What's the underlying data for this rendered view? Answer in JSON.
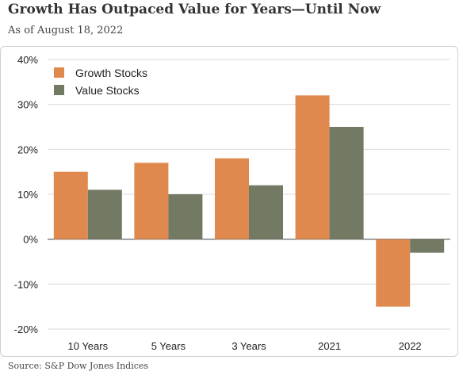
{
  "header": {
    "title": "Growth Has Outpaced Value for Years—Until Now",
    "subtitle": "As of August 18, 2022"
  },
  "footer": {
    "source": "Source: S&P Dow Jones Indices"
  },
  "chart_data": {
    "type": "bar",
    "categories": [
      "10 Years",
      "5 Years",
      "3 Years",
      "2021",
      "2022"
    ],
    "series": [
      {
        "name": "Growth Stocks",
        "color": "#e0894e",
        "values": [
          15,
          17,
          18,
          32,
          -15
        ]
      },
      {
        "name": "Value Stocks",
        "color": "#737a64",
        "values": [
          11,
          10,
          12,
          25,
          -3
        ]
      }
    ],
    "yticks": [
      40,
      30,
      20,
      10,
      0,
      -10,
      -20
    ],
    "ytick_labels": [
      "40%",
      "30%",
      "20%",
      "10%",
      "0%",
      "-10%",
      "-20%"
    ],
    "ylim": [
      -20,
      40
    ],
    "grid": true,
    "legend_position": "top-left",
    "xlabel": "",
    "ylabel": ""
  }
}
